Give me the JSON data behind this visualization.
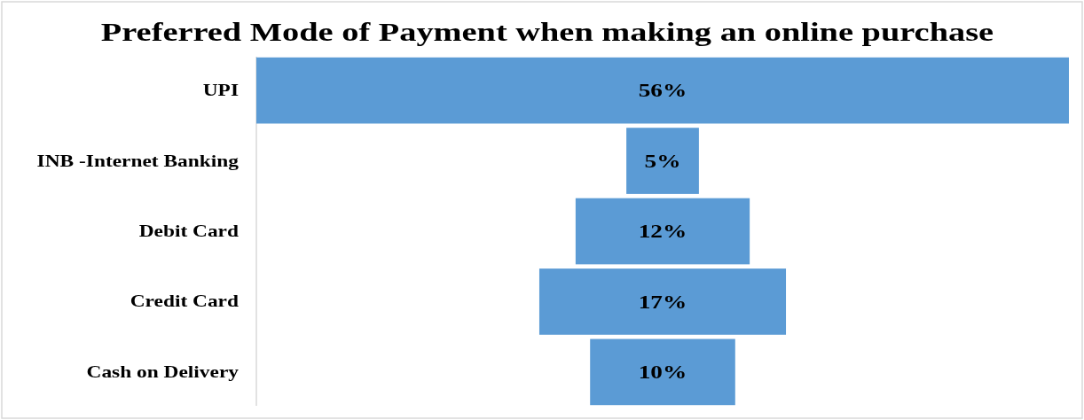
{
  "chart_data": {
    "type": "other",
    "title": "Preferred Mode of Payment when making an online purchase",
    "categories": [
      "UPI",
      "INB -Internet Banking",
      "Debit Card",
      "Credit Card",
      "Cash on Delivery"
    ],
    "values": [
      56,
      5,
      12,
      17,
      10
    ],
    "value_labels": [
      "56%",
      "5%",
      "12%",
      "17%",
      "10%"
    ],
    "color": "#5b9bd5"
  }
}
